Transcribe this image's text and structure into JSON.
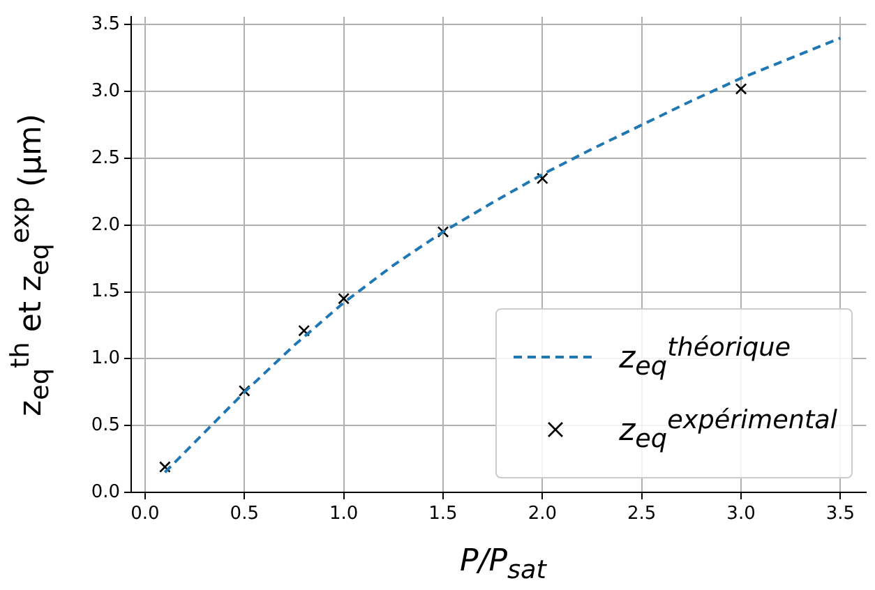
{
  "chart_data": {
    "type": "line",
    "xlabel": "P/P$_{sat}$",
    "ylabel": "z$_{eq}$$^{th}$ et z$_{eq}$$^{exp}$ (μm)",
    "series": [
      {
        "name": "z$_{eq}$$^{théorique}$",
        "type": "line",
        "color": "#1f77b4",
        "line_style": "dashed",
        "marker": "none",
        "x": [
          0.1,
          0.3,
          0.5,
          0.75,
          1.0,
          1.25,
          1.5,
          1.75,
          2.0,
          2.25,
          2.5,
          2.75,
          3.0,
          3.25,
          3.5
        ],
        "values": [
          0.15,
          0.45,
          0.75,
          1.1,
          1.42,
          1.7,
          1.95,
          2.17,
          2.38,
          2.57,
          2.75,
          2.93,
          3.1,
          3.25,
          3.4
        ]
      },
      {
        "name": "z$_{eq}$$^{expérimental}$",
        "type": "scatter",
        "color": "#000000",
        "marker": "cross",
        "x": [
          0.1,
          0.5,
          0.8,
          1.0,
          1.5,
          2.0,
          3.0
        ],
        "values": [
          0.19,
          0.76,
          1.21,
          1.45,
          1.95,
          2.35,
          3.02
        ]
      }
    ],
    "xlim": [
      -0.07,
      3.63
    ],
    "xticks": [
      {
        "value": 0,
        "label": "0.0"
      },
      0.5,
      {
        "value": 1,
        "label": "1.0"
      },
      1.5,
      {
        "value": 2,
        "label": "2.0"
      },
      2.5,
      {
        "value": 3,
        "label": "3.0"
      },
      3.5
    ],
    "ylim": [
      0,
      3.56
    ],
    "yticks": [
      {
        "value": 0,
        "label": "0.0"
      },
      0.5,
      {
        "value": 1,
        "label": "1.0"
      },
      1.5,
      {
        "value": 2,
        "label": "2.0"
      },
      2.5,
      {
        "value": 3,
        "label": "3.0"
      },
      3.5
    ],
    "grid": true,
    "legend": "bottom right"
  }
}
